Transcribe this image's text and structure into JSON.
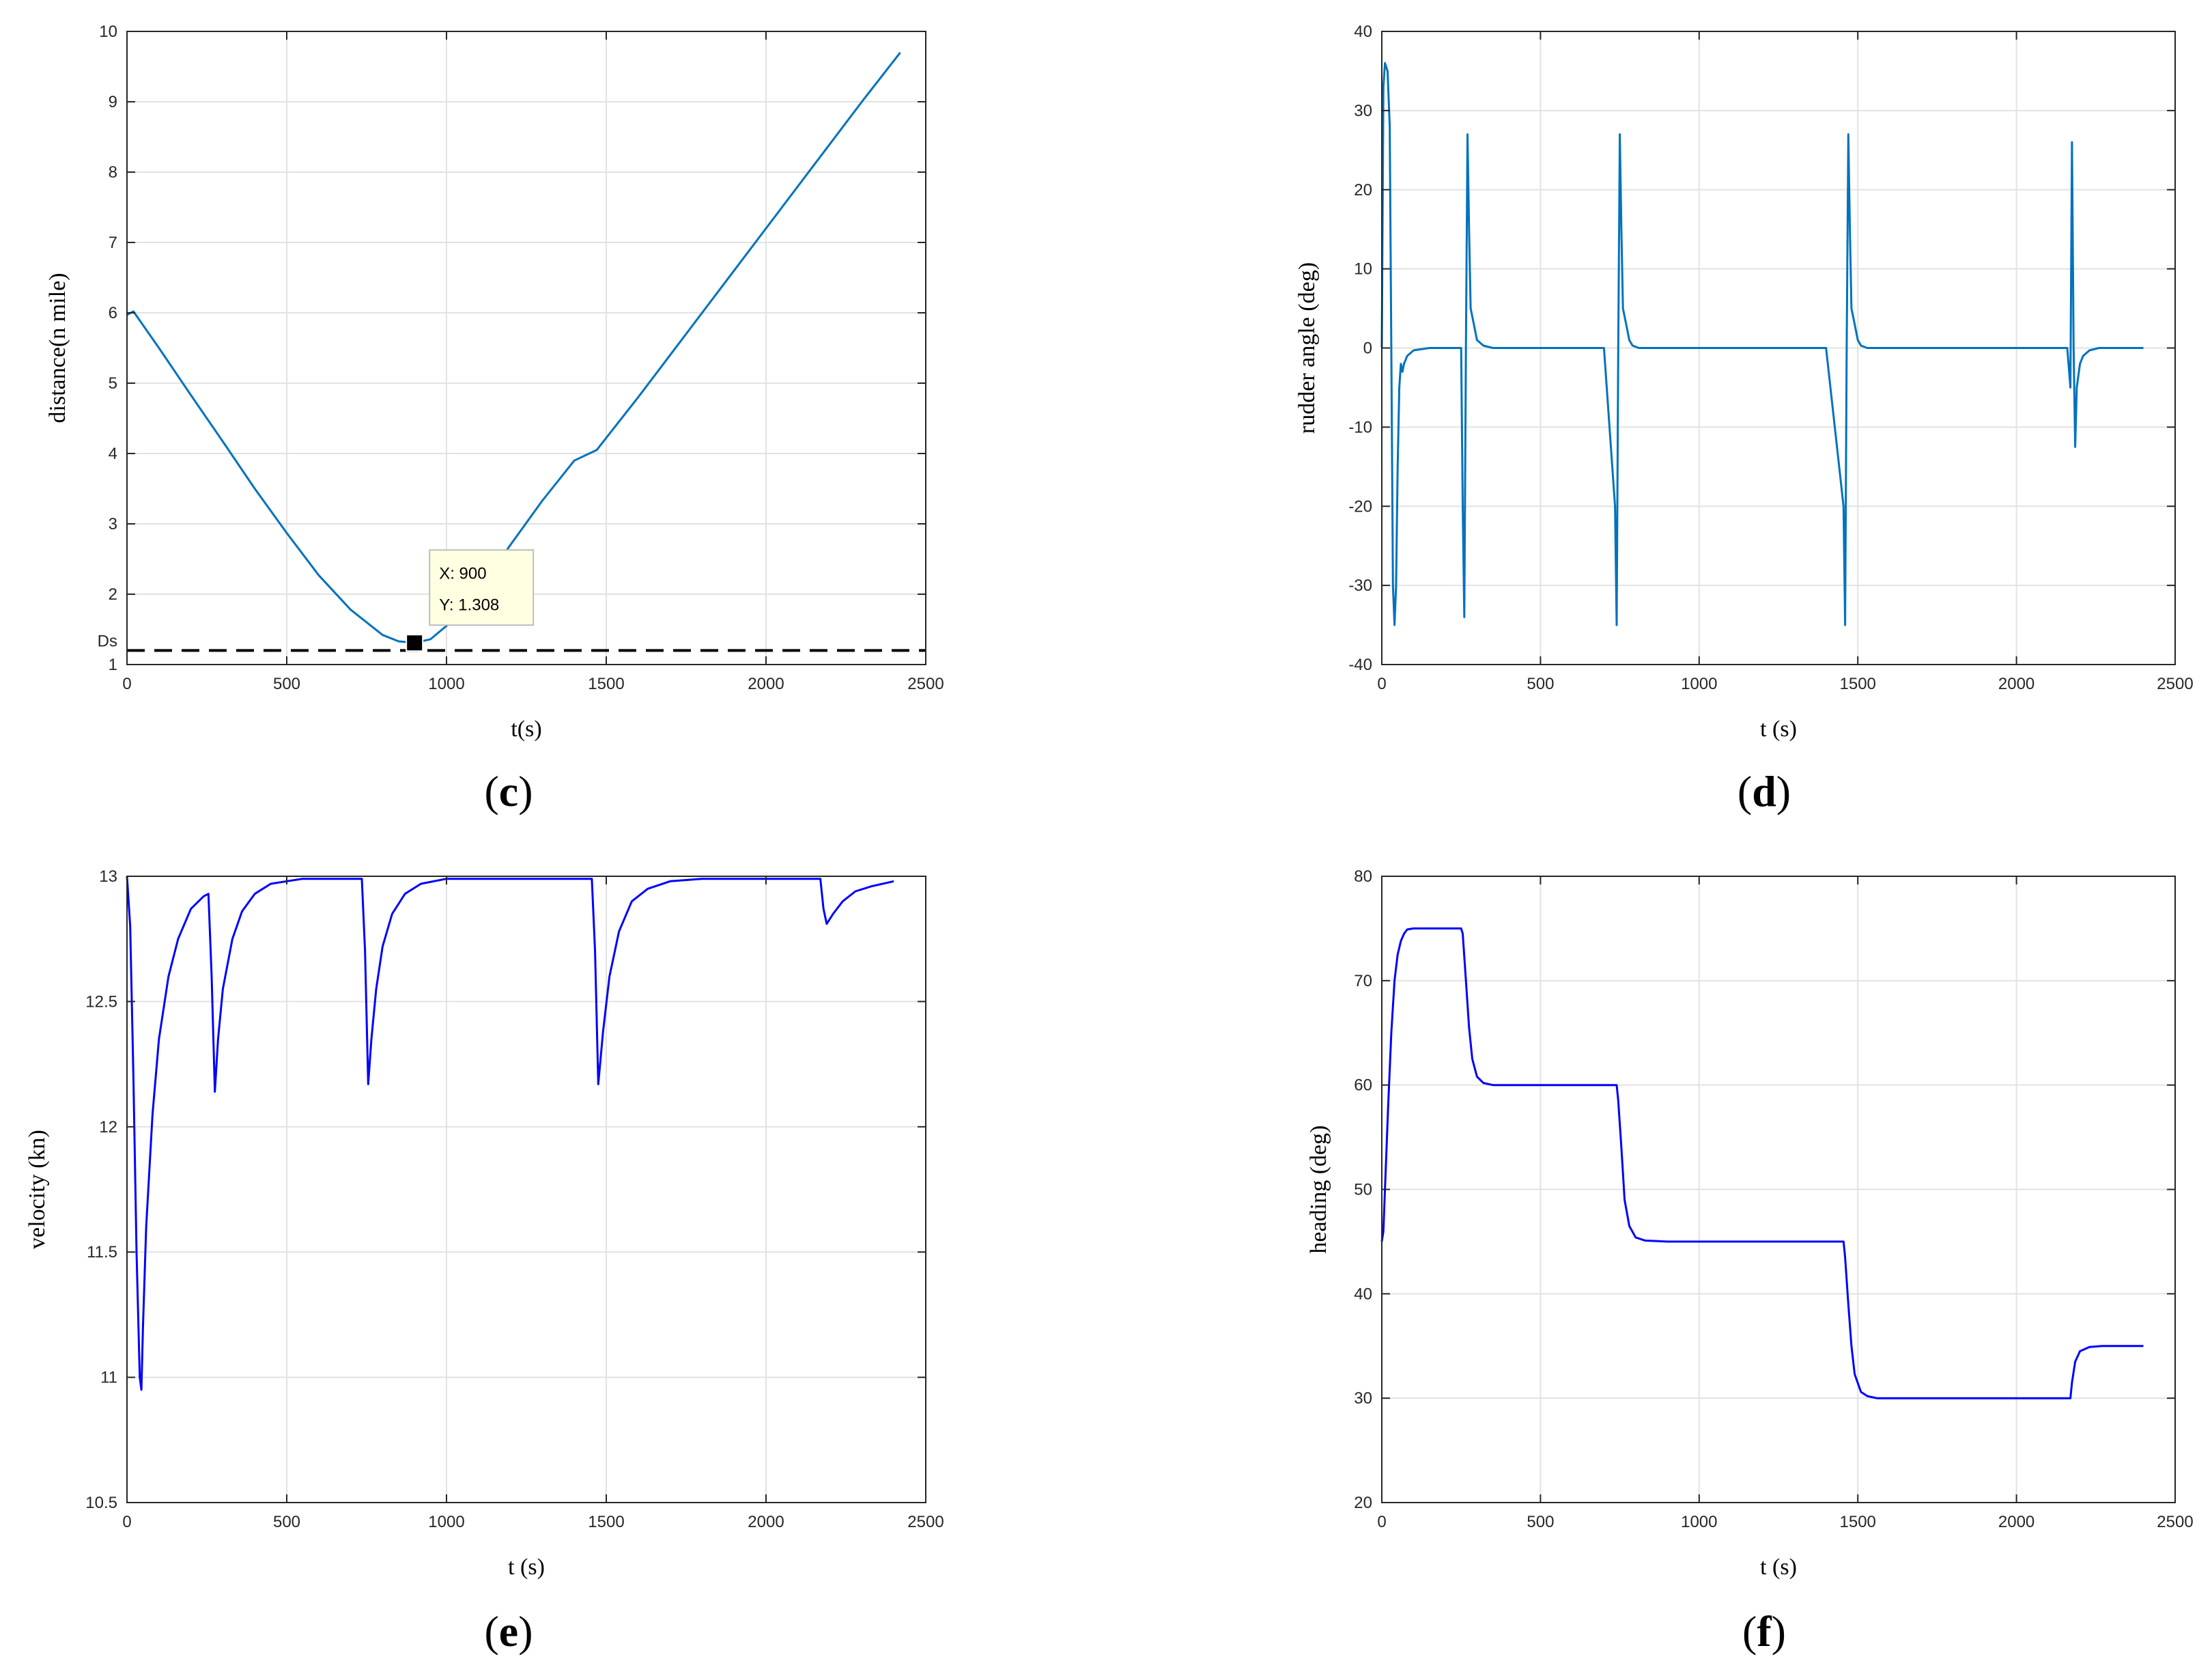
{
  "chart_data": [
    {
      "id": "c",
      "type": "line",
      "panel_label": "c",
      "xlabel": "t(s)",
      "ylabel": "distance(n mile)",
      "xlim": [
        0,
        2500
      ],
      "ylim": [
        1,
        10
      ],
      "xticks": [
        0,
        500,
        1000,
        1500,
        2000,
        2500
      ],
      "yticks": [
        1,
        2,
        3,
        4,
        5,
        6,
        7,
        8,
        9,
        10
      ],
      "grid": true,
      "line_color": "#0072BD",
      "series": [
        {
          "x": [
            0,
            20,
            100,
            200,
            300,
            400,
            500,
            600,
            700,
            800,
            850,
            900,
            950,
            1000,
            1100,
            1200,
            1300,
            1400,
            1470,
            1600,
            1700,
            1800,
            1900,
            2000,
            2100,
            2200,
            2300,
            2420
          ],
          "y": [
            5.97,
            6.02,
            5.5,
            4.83,
            4.17,
            3.5,
            2.87,
            2.27,
            1.78,
            1.42,
            1.33,
            1.308,
            1.36,
            1.55,
            2.05,
            2.7,
            3.33,
            3.9,
            4.05,
            4.8,
            5.4,
            6.0,
            6.6,
            7.2,
            7.8,
            8.4,
            9.0,
            9.7
          ]
        }
      ],
      "threshold": {
        "label": "Ds",
        "y": 1.2,
        "style": "dashed",
        "color": "#000000"
      },
      "datatip": {
        "x_text": "X: 900",
        "y_text": "Y: 1.308",
        "x": 900,
        "y": 1.308
      }
    },
    {
      "id": "d",
      "type": "line",
      "panel_label": "d",
      "xlabel": "t (s)",
      "ylabel": "rudder angle (deg)",
      "xlim": [
        0,
        2500
      ],
      "ylim": [
        -40,
        40
      ],
      "xticks": [
        0,
        500,
        1000,
        1500,
        2000,
        2500
      ],
      "yticks": [
        -40,
        -30,
        -20,
        -10,
        0,
        10,
        20,
        30,
        40
      ],
      "grid": true,
      "line_color": "#0072BD",
      "series": [
        {
          "x": [
            0,
            5,
            10,
            18,
            25,
            30,
            35,
            40,
            45,
            50,
            55,
            60,
            65,
            70,
            80,
            100,
            150,
            200,
            250,
            255,
            260,
            265,
            270,
            275,
            280,
            290,
            300,
            320,
            350,
            400,
            500,
            600,
            700,
            735,
            740,
            745,
            750,
            755,
            760,
            770,
            780,
            790,
            810,
            850,
            900,
            1000,
            1200,
            1400,
            1455,
            1460,
            1465,
            1470,
            1475,
            1480,
            1490,
            1500,
            1510,
            1530,
            1560,
            1600,
            1800,
            2000,
            2160,
            2170,
            2175,
            2180,
            2185,
            2190,
            2200,
            2210,
            2230,
            2260,
            2300,
            2400
          ],
          "y": [
            0,
            33,
            36,
            35,
            28,
            0,
            -30,
            -35,
            -30,
            -15,
            -5,
            -2,
            -3,
            -2,
            -1,
            -0.3,
            0,
            0,
            0,
            -20,
            -34,
            0,
            27,
            15,
            5,
            3,
            1,
            0.3,
            0,
            0,
            0,
            0,
            0,
            -20,
            -35,
            0,
            27,
            15,
            5,
            3,
            1,
            0.3,
            0,
            0,
            0,
            0,
            0,
            0,
            -20,
            -35,
            0,
            27,
            15,
            5,
            3,
            1,
            0.3,
            0,
            0,
            0,
            0,
            0,
            0,
            -5,
            26,
            0,
            -12.5,
            -5,
            -2,
            -1,
            -0.3,
            0,
            0,
            0
          ]
        }
      ]
    },
    {
      "id": "e",
      "type": "line",
      "panel_label": "e",
      "xlabel": "t (s)",
      "ylabel": "velocity (kn)",
      "xlim": [
        0,
        2500
      ],
      "ylim": [
        10.5,
        13
      ],
      "xticks": [
        0,
        500,
        1000,
        1500,
        2000,
        2500
      ],
      "yticks": [
        10.5,
        11,
        11.5,
        12,
        12.5,
        13
      ],
      "grid": true,
      "line_color": "#0000FF",
      "series": [
        {
          "x": [
            0,
            10,
            20,
            30,
            40,
            45,
            50,
            60,
            80,
            100,
            130,
            160,
            200,
            240,
            255,
            265,
            275,
            285,
            300,
            330,
            360,
            400,
            450,
            500,
            550,
            600,
            650,
            700,
            735,
            745,
            755,
            765,
            780,
            800,
            830,
            870,
            920,
            1000,
            1100,
            1200,
            1300,
            1400,
            1455,
            1465,
            1475,
            1490,
            1510,
            1540,
            1580,
            1630,
            1700,
            1800,
            1900,
            2000,
            2100,
            2170,
            2180,
            2190,
            2210,
            2240,
            2280,
            2330,
            2400
          ],
          "y": [
            13,
            12.8,
            12.2,
            11.5,
            11.0,
            10.95,
            11.2,
            11.6,
            12.05,
            12.35,
            12.6,
            12.75,
            12.87,
            12.92,
            12.93,
            12.6,
            12.14,
            12.35,
            12.55,
            12.75,
            12.86,
            12.93,
            12.97,
            12.98,
            12.99,
            12.99,
            12.99,
            12.99,
            12.99,
            12.7,
            12.17,
            12.35,
            12.55,
            12.72,
            12.85,
            12.93,
            12.97,
            12.99,
            12.99,
            12.99,
            12.99,
            12.99,
            12.99,
            12.7,
            12.17,
            12.38,
            12.6,
            12.78,
            12.9,
            12.95,
            12.98,
            12.99,
            12.99,
            12.99,
            12.99,
            12.99,
            12.87,
            12.81,
            12.85,
            12.9,
            12.94,
            12.96,
            12.98
          ]
        }
      ]
    },
    {
      "id": "f",
      "type": "line",
      "panel_label": "f",
      "xlabel": "t (s)",
      "ylabel": "heading (deg)",
      "xlim": [
        0,
        2500
      ],
      "ylim": [
        20,
        80
      ],
      "xticks": [
        0,
        500,
        1000,
        1500,
        2000,
        2500
      ],
      "yticks": [
        20,
        30,
        40,
        50,
        60,
        70,
        80
      ],
      "grid": true,
      "line_color": "#0000FF",
      "series": [
        {
          "x": [
            0,
            5,
            10,
            20,
            30,
            40,
            50,
            60,
            70,
            80,
            100,
            150,
            200,
            250,
            255,
            265,
            275,
            285,
            300,
            320,
            350,
            400,
            500,
            600,
            700,
            740,
            745,
            755,
            765,
            780,
            800,
            830,
            900,
            1000,
            1200,
            1400,
            1455,
            1460,
            1470,
            1480,
            1490,
            1510,
            1530,
            1560,
            1600,
            1800,
            2000,
            2170,
            2175,
            2185,
            2200,
            2230,
            2270,
            2330,
            2400
          ],
          "y": [
            45,
            46,
            50,
            58,
            65,
            70,
            72.5,
            73.8,
            74.5,
            74.9,
            75,
            75,
            75,
            75,
            74.5,
            70,
            65.5,
            62.5,
            60.8,
            60.2,
            60,
            60,
            60,
            60,
            60,
            60,
            58.5,
            54,
            49,
            46.5,
            45.4,
            45.1,
            45,
            45,
            45,
            45,
            45,
            43.5,
            39,
            35,
            32.3,
            30.6,
            30.2,
            30,
            30,
            30,
            30,
            30,
            31.5,
            33.5,
            34.5,
            34.9,
            35,
            35,
            35
          ]
        }
      ]
    }
  ]
}
